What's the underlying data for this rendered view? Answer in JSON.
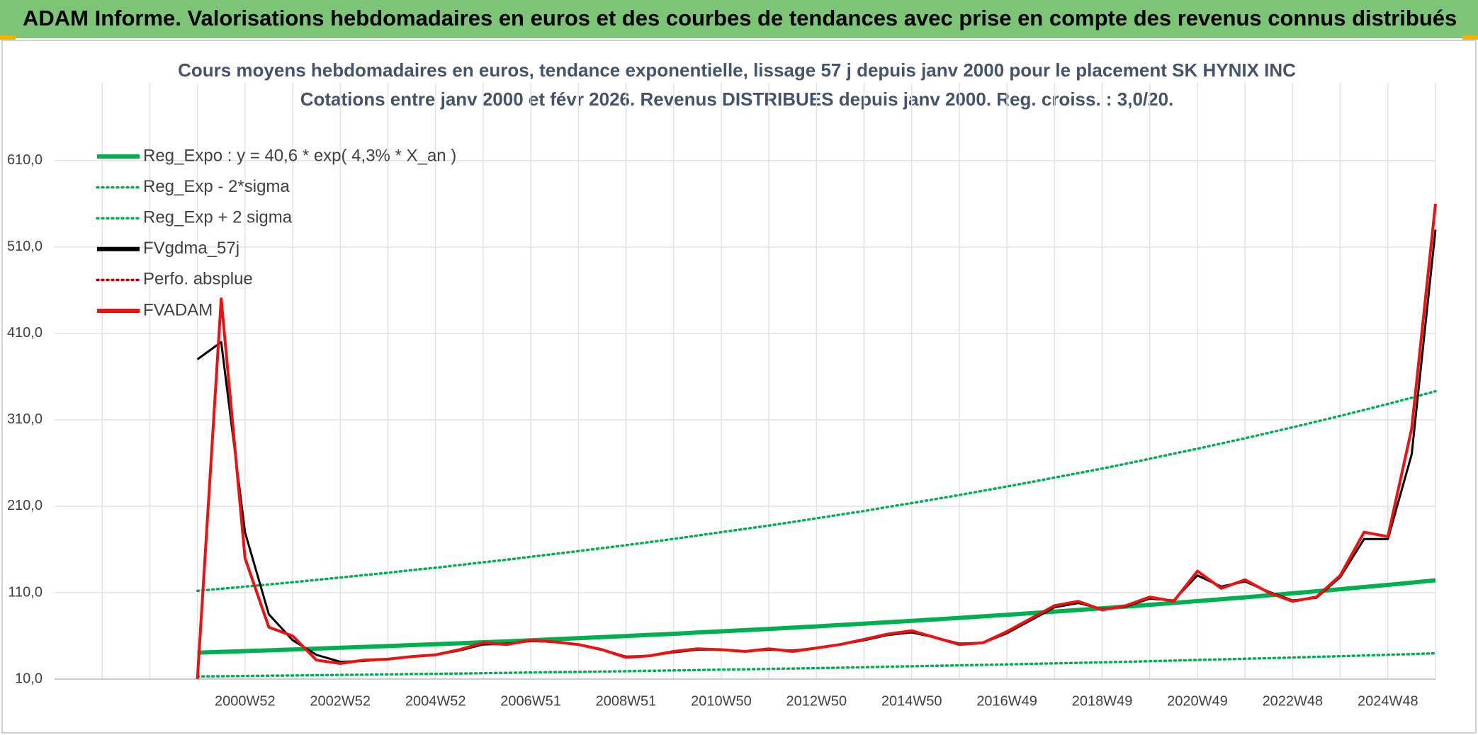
{
  "header": {
    "title": "ADAM Informe. Valorisations hebdomadaires en euros et des courbes de tendances avec prise en compte des revenus connus distribués"
  },
  "chart_data": {
    "type": "line",
    "title": "Cours moyens hebdomadaires en euros, tendance exponentielle, lissage 57 j depuis janv 2000 pour le placement SK HYNIX INC",
    "subtitle": "Cotations entre janv 2000 et févr 2026. Revenus DISTRIBUES depuis janv 2000. Reg. croiss. : 3,0/20.",
    "categories": [
      null,
      null,
      null,
      null,
      null,
      null,
      null,
      null,
      "2000W52",
      null,
      null,
      null,
      "2002W52",
      null,
      null,
      null,
      "2004W52",
      null,
      null,
      null,
      "2006W51",
      null,
      null,
      null,
      "2008W51",
      null,
      null,
      null,
      "2010W50",
      null,
      null,
      null,
      "2012W50",
      null,
      null,
      null,
      "2014W50",
      null,
      null,
      null,
      "2016W49",
      null,
      null,
      null,
      "2018W49",
      null,
      null,
      null,
      "2020W49",
      null,
      null,
      null,
      "2022W48",
      null,
      null,
      null,
      "2024W48",
      null,
      null
    ],
    "ylim": [
      10,
      700
    ],
    "yticks": [
      {
        "value": 10,
        "label": "10,0"
      },
      {
        "value": 110,
        "label": "110,0"
      },
      {
        "value": 210,
        "label": "210,0"
      },
      {
        "value": 310,
        "label": "310,0"
      },
      {
        "value": 410,
        "label": "410,0"
      },
      {
        "value": 510,
        "label": "510,0"
      },
      {
        "value": 610,
        "label": "610,0"
      }
    ],
    "grid": true,
    "legend": "top-left",
    "series": [
      {
        "name": "Reg_Expo : y = 40,6 * exp( 4,3% *  X_an )",
        "color": "#00b050",
        "width": 6,
        "dash": "solid",
        "values": [
          null,
          null,
          null,
          null,
          null,
          null,
          40.6,
          41.5,
          42.4,
          43.3,
          44.2,
          45.2,
          46.2,
          47.2,
          48.2,
          49.3,
          50.3,
          51.4,
          52.6,
          53.7,
          54.9,
          56.1,
          57.3,
          58.5,
          59.8,
          61.1,
          62.4,
          63.8,
          65.2,
          66.6,
          68.0,
          69.5,
          71.0,
          72.6,
          74.1,
          75.8,
          77.4,
          79.1,
          80.8,
          82.6,
          84.4,
          86.2,
          88.1,
          90.0,
          91.9,
          93.9,
          96.0,
          98.1,
          100.2,
          102.4,
          104.6,
          106.9,
          109.2,
          111.6,
          114.0,
          116.5,
          119.0,
          121.6,
          124.3
        ]
      },
      {
        "name": "Reg_Exp - 2*sigma",
        "color": "#00b050",
        "width": 3.5,
        "dash": "dot",
        "values": [
          null,
          null,
          null,
          null,
          null,
          null,
          13.0,
          13.3,
          13.6,
          13.9,
          14.1,
          14.5,
          14.8,
          15.1,
          15.4,
          15.8,
          16.1,
          16.4,
          16.8,
          17.2,
          17.6,
          18.0,
          18.3,
          18.7,
          19.1,
          19.6,
          20.0,
          20.4,
          20.9,
          21.3,
          21.8,
          22.2,
          22.7,
          23.2,
          23.7,
          24.3,
          24.8,
          25.3,
          25.9,
          26.4,
          27.0,
          27.6,
          28.2,
          28.8,
          29.4,
          30.0,
          30.7,
          31.4,
          32.1,
          32.8,
          33.5,
          34.2,
          34.9,
          35.7,
          36.5,
          37.3,
          38.1,
          38.9,
          39.8
        ]
      },
      {
        "name": "Reg_Exp + 2 sigma",
        "color": "#00b050",
        "width": 3.5,
        "dash": "dot",
        "values": [
          null,
          null,
          null,
          null,
          null,
          null,
          112.1,
          114.5,
          117.0,
          119.5,
          122.0,
          124.8,
          127.5,
          130.3,
          133.0,
          136.1,
          138.8,
          141.9,
          145.2,
          148.2,
          151.5,
          154.8,
          158.1,
          161.5,
          165.0,
          168.6,
          172.2,
          176.1,
          180.0,
          183.8,
          187.7,
          191.8,
          196.0,
          200.4,
          204.5,
          209.2,
          213.6,
          218.3,
          223.0,
          228.0,
          232.9,
          237.9,
          243.2,
          248.4,
          253.6,
          259.2,
          265.0,
          270.8,
          276.6,
          282.6,
          288.7,
          295.0,
          301.4,
          308.0,
          314.6,
          321.5,
          328.4,
          335.6,
          343.1
        ]
      },
      {
        "name": "FVgdma_57j",
        "color": "#000000",
        "width": 3,
        "dash": "solid",
        "values": [
          null,
          null,
          null,
          null,
          null,
          null,
          380,
          400,
          180,
          85,
          55,
          38,
          30,
          31,
          33,
          36,
          38,
          43,
          50,
          51,
          54,
          53,
          50,
          44,
          36,
          37,
          41,
          44,
          44,
          42,
          44,
          43,
          46,
          50,
          55,
          61,
          64,
          58,
          51,
          52,
          63,
          78,
          93,
          98,
          91,
          94,
          103,
          101,
          130,
          117,
          123,
          111,
          101,
          104,
          128,
          172,
          172,
          270,
          530
        ]
      },
      {
        "name": "Perfo. absplue",
        "color": "#c00000",
        "width": 2.5,
        "dash": "dot"
      },
      {
        "name": "FVADAM",
        "color": "#ee1111",
        "width": 4,
        "dash": "solid",
        "values": [
          null,
          null,
          null,
          null,
          null,
          null,
          10,
          450,
          150,
          70,
          60,
          32,
          28,
          32,
          33,
          36,
          38,
          44,
          52,
          50,
          55,
          53,
          50,
          44,
          35,
          37,
          42,
          45,
          44,
          42,
          45,
          42,
          46,
          50,
          56,
          62,
          66,
          58,
          50,
          52,
          65,
          80,
          95,
          100,
          90,
          95,
          105,
          100,
          135,
          115,
          125,
          110,
          100,
          105,
          130,
          180,
          175,
          300,
          560
        ]
      }
    ]
  }
}
